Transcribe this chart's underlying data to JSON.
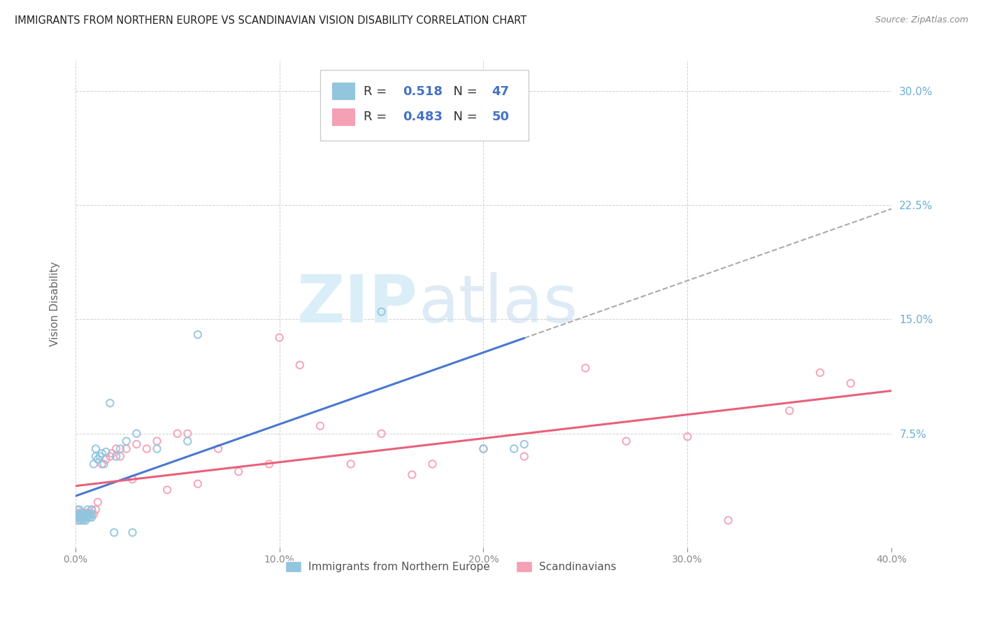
{
  "title": "IMMIGRANTS FROM NORTHERN EUROPE VS SCANDINAVIAN VISION DISABILITY CORRELATION CHART",
  "source": "Source: ZipAtlas.com",
  "ylabel": "Vision Disability",
  "xlim": [
    0.0,
    0.4
  ],
  "ylim": [
    0.0,
    0.32
  ],
  "xticks": [
    0.0,
    0.1,
    0.2,
    0.3,
    0.4
  ],
  "xtick_labels": [
    "0.0%",
    "10.0%",
    "20.0%",
    "30.0%",
    "40.0%"
  ],
  "yticks": [
    0.0,
    0.075,
    0.15,
    0.225,
    0.3
  ],
  "ytick_labels": [
    "",
    "7.5%",
    "15.0%",
    "22.5%",
    "30.0%"
  ],
  "color_blue": "#92c5de",
  "color_pink": "#f4a0b5",
  "line_blue": "#4878cf",
  "line_pink": "#e8607a",
  "line_dash": "#aaaaaa",
  "R_blue": 0.518,
  "N_blue": 47,
  "R_pink": 0.483,
  "N_pink": 50,
  "legend_label_blue": "Immigrants from Northern Europe",
  "legend_label_pink": "Scandinavians",
  "blue_x": [
    0.001,
    0.001,
    0.001,
    0.002,
    0.002,
    0.002,
    0.002,
    0.003,
    0.003,
    0.003,
    0.004,
    0.004,
    0.004,
    0.005,
    0.005,
    0.005,
    0.006,
    0.006,
    0.006,
    0.007,
    0.007,
    0.008,
    0.008,
    0.008,
    0.009,
    0.01,
    0.01,
    0.011,
    0.012,
    0.013,
    0.014,
    0.015,
    0.017,
    0.019,
    0.02,
    0.022,
    0.025,
    0.028,
    0.03,
    0.04,
    0.055,
    0.06,
    0.15,
    0.16,
    0.2,
    0.215,
    0.22
  ],
  "blue_y": [
    0.02,
    0.022,
    0.025,
    0.018,
    0.02,
    0.022,
    0.025,
    0.018,
    0.02,
    0.022,
    0.018,
    0.02,
    0.022,
    0.018,
    0.02,
    0.022,
    0.02,
    0.022,
    0.025,
    0.02,
    0.022,
    0.02,
    0.022,
    0.025,
    0.055,
    0.06,
    0.065,
    0.058,
    0.06,
    0.062,
    0.055,
    0.063,
    0.095,
    0.01,
    0.06,
    0.065,
    0.07,
    0.01,
    0.075,
    0.065,
    0.07,
    0.14,
    0.155,
    0.285,
    0.065,
    0.065,
    0.068
  ],
  "pink_x": [
    0.001,
    0.001,
    0.002,
    0.002,
    0.003,
    0.003,
    0.004,
    0.004,
    0.005,
    0.005,
    0.006,
    0.007,
    0.008,
    0.009,
    0.01,
    0.011,
    0.013,
    0.015,
    0.017,
    0.018,
    0.02,
    0.022,
    0.025,
    0.028,
    0.03,
    0.035,
    0.04,
    0.045,
    0.05,
    0.055,
    0.06,
    0.07,
    0.08,
    0.095,
    0.1,
    0.11,
    0.12,
    0.135,
    0.15,
    0.165,
    0.175,
    0.2,
    0.22,
    0.25,
    0.27,
    0.3,
    0.32,
    0.35,
    0.365,
    0.38
  ],
  "pink_y": [
    0.018,
    0.022,
    0.02,
    0.023,
    0.02,
    0.022,
    0.02,
    0.023,
    0.02,
    0.022,
    0.023,
    0.022,
    0.025,
    0.022,
    0.025,
    0.03,
    0.055,
    0.058,
    0.06,
    0.062,
    0.065,
    0.06,
    0.065,
    0.045,
    0.068,
    0.065,
    0.07,
    0.038,
    0.075,
    0.075,
    0.042,
    0.065,
    0.05,
    0.055,
    0.138,
    0.12,
    0.08,
    0.055,
    0.075,
    0.048,
    0.055,
    0.065,
    0.06,
    0.118,
    0.07,
    0.073,
    0.018,
    0.09,
    0.115,
    0.108
  ],
  "background_color": "#ffffff",
  "grid_color": "#d0d0d0",
  "title_color": "#222222",
  "axis_color": "#6baed6",
  "watermark_zip": "ZIP",
  "watermark_atlas": "atlas",
  "watermark_color": "#daeef8"
}
